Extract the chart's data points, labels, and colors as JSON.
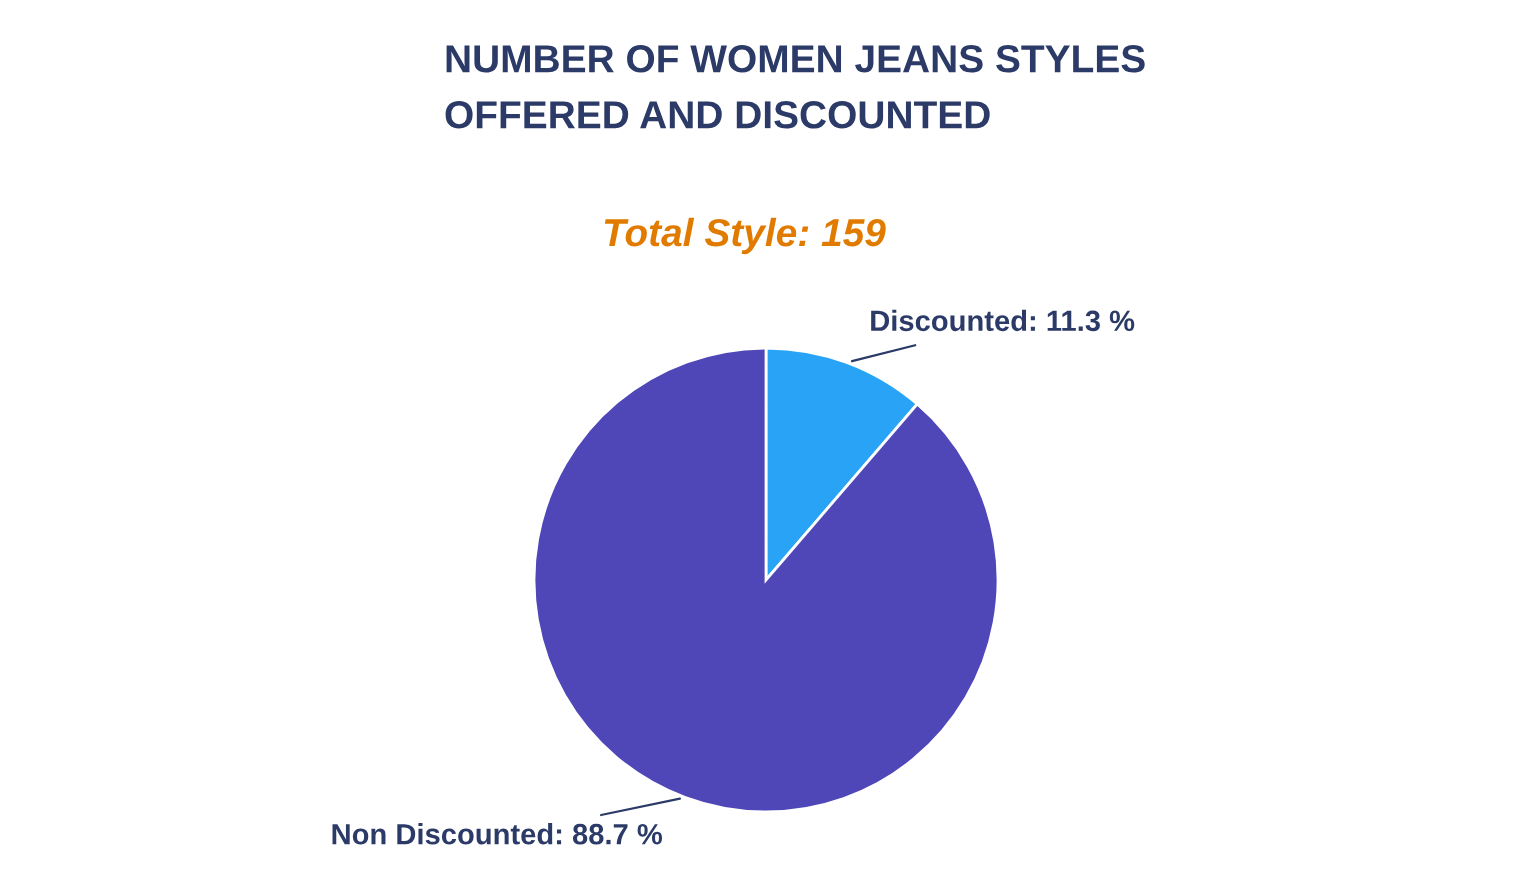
{
  "chart_data": {
    "type": "pie",
    "title": "NUMBER OF WOMEN JEANS STYLES\nOFFERED AND DISCOUNTED",
    "subtitle": "Total Style: 159",
    "categories": [
      "Discounted",
      "Non Discounted"
    ],
    "values": [
      11.3,
      88.7
    ],
    "colors": [
      "#29a3f5",
      "#4f47b8"
    ],
    "value_labels": [
      "11.3 %",
      "88.7 %"
    ],
    "legend": false
  }
}
